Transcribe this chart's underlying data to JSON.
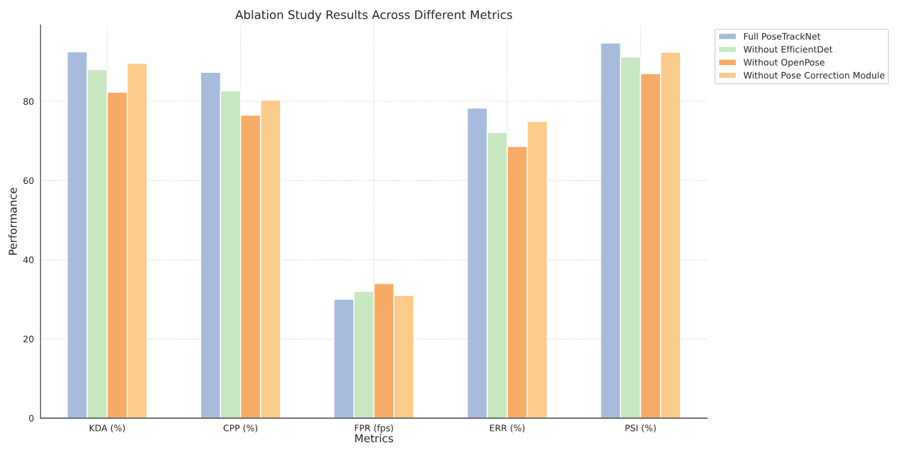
{
  "chart_data": {
    "type": "bar",
    "title": "Ablation Study Results Across Different Metrics",
    "xlabel": "Metrics",
    "ylabel": "Performance",
    "categories": [
      "KDA (%)",
      "CPP (%)",
      "FPR (fps)",
      "ERR (%)",
      "PSI (%)"
    ],
    "series": [
      {
        "name": "Full PoseTrackNet",
        "color": "#a7bcdc",
        "values": [
          92.5,
          87.3,
          30,
          78.3,
          94.7
        ]
      },
      {
        "name": "Without EfficientDet",
        "color": "#c7e7c1",
        "values": [
          88.0,
          82.6,
          32,
          72.1,
          91.2
        ]
      },
      {
        "name": "Without OpenPose",
        "color": "#f8ab67",
        "values": [
          82.3,
          76.5,
          34,
          68.6,
          87.0
        ]
      },
      {
        "name": "Without Pose Correction Module",
        "color": "#fbcb8b",
        "values": [
          89.6,
          80.3,
          31,
          74.9,
          92.4
        ]
      }
    ],
    "ylim": [
      0,
      99.3
    ],
    "yticks": [
      0,
      20,
      40,
      60,
      80
    ],
    "grid": true,
    "legend": "top right"
  }
}
